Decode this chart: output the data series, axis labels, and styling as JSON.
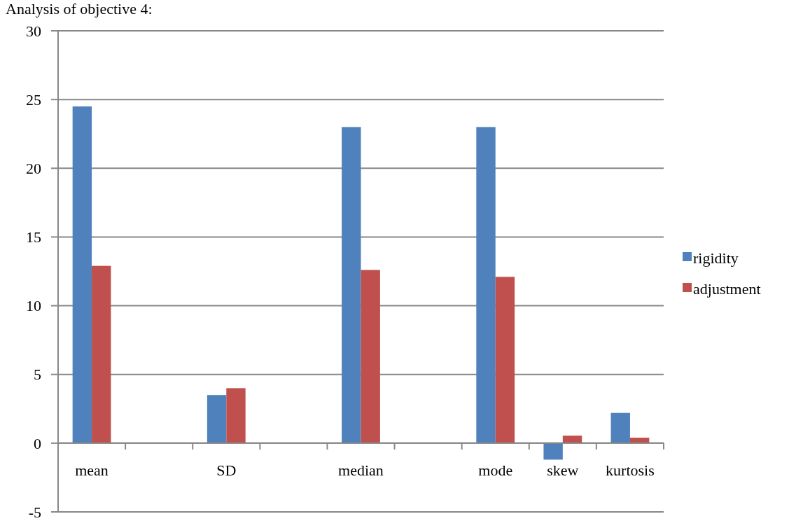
{
  "chart_data": {
    "type": "bar",
    "title": "Analysis of objective 4:",
    "categories": [
      "mean",
      null,
      "SD",
      null,
      "median",
      null,
      "mode",
      "skew",
      "kurtosis"
    ],
    "series": [
      {
        "name": "rigidity",
        "color": "#4f81bd",
        "values": [
          24.5,
          null,
          3.5,
          null,
          23,
          null,
          23,
          -1.2,
          2.2
        ]
      },
      {
        "name": "adjustment",
        "color": "#c0504d",
        "values": [
          12.9,
          null,
          4.0,
          null,
          12.6,
          null,
          12.1,
          0.55,
          0.4
        ]
      }
    ],
    "ylim": [
      -5,
      30
    ],
    "yticks": [
      -5,
      0,
      5,
      10,
      15,
      20,
      25,
      30
    ],
    "grid": "y",
    "legend": "right"
  }
}
